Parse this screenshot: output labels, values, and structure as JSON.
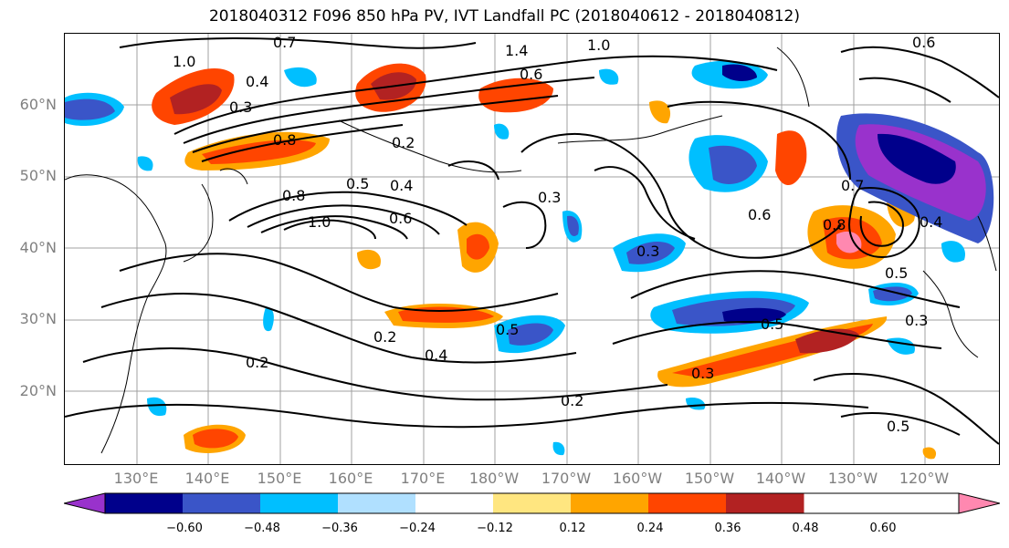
{
  "title": "2018040312 F096 850 hPa PV, IVT Landfall PC (2018040612 - 2018040812)",
  "lat_labels": [
    "60°N",
    "50°N",
    "40°N",
    "30°N",
    "20°N"
  ],
  "lon_labels": [
    "130°E",
    "140°E",
    "150°E",
    "160°E",
    "170°E",
    "180°W",
    "170°W",
    "160°W",
    "150°W",
    "140°W",
    "130°W",
    "120°W"
  ],
  "colorbar": {
    "ticks": [
      "−0.60",
      "−0.48",
      "−0.36",
      "−0.24",
      "−0.12",
      "0.12",
      "0.24",
      "0.36",
      "0.48",
      "0.60"
    ],
    "colors": [
      "#9932cc",
      "#00008b",
      "#3a55c8",
      "#00bfff",
      "#b0e0ff",
      "#ffffff",
      "#ffe680",
      "#ffa500",
      "#ff4500",
      "#b22222",
      "#ff88b0"
    ]
  },
  "contour_labels": [
    "0.7",
    "1.0",
    "0.4",
    "0.3",
    "0.8",
    "1.4",
    "1.0",
    "0.6",
    "0.2",
    "0.5",
    "0.4",
    "1.0",
    "0.8",
    "0.6",
    "0.3",
    "0.7",
    "0.8",
    "0.6",
    "0.4",
    "0.5",
    "0.3",
    "0.5",
    "0.5",
    "0.4",
    "0.3",
    "0.2",
    "0.2",
    "0.5",
    "0.6",
    "0.3",
    "0.2"
  ]
}
